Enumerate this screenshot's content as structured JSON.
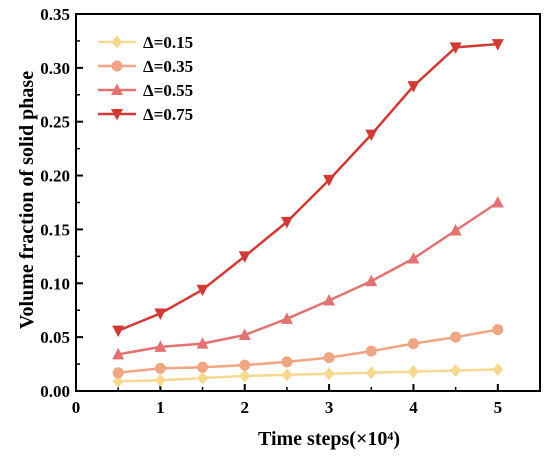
{
  "chart_data": {
    "type": "line",
    "title": "",
    "xlabel": "Time steps(×10⁴)",
    "ylabel": "Volume fraction of solid phase",
    "xlim": [
      0,
      5.5
    ],
    "ylim": [
      0,
      0.35
    ],
    "xticks": [
      0,
      1,
      2,
      3,
      4,
      5
    ],
    "xtick_labels": [
      "0",
      "1",
      "2",
      "3",
      "4",
      "5"
    ],
    "yticks": [
      0.0,
      0.05,
      0.1,
      0.15,
      0.2,
      0.25,
      0.3,
      0.35
    ],
    "ytick_labels": [
      "0.00",
      "0.05",
      "0.10",
      "0.15",
      "0.20",
      "0.25",
      "0.30",
      "0.35"
    ],
    "grid": false,
    "legend_position": "top-left",
    "x": [
      0.5,
      1.0,
      1.5,
      2.0,
      2.5,
      3.0,
      3.5,
      4.0,
      4.5,
      5.0
    ],
    "series": [
      {
        "name": "Δ=0.15",
        "color": "#F6D98F",
        "marker": "diamond",
        "values": [
          0.009,
          0.01,
          0.012,
          0.014,
          0.015,
          0.016,
          0.017,
          0.018,
          0.019,
          0.02
        ]
      },
      {
        "name": "Δ=0.35",
        "color": "#F0A583",
        "marker": "circle",
        "values": [
          0.017,
          0.021,
          0.022,
          0.024,
          0.027,
          0.031,
          0.037,
          0.044,
          0.05,
          0.057
        ]
      },
      {
        "name": "Δ=0.55",
        "color": "#E27372",
        "marker": "triangle-up",
        "values": [
          0.034,
          0.041,
          0.044,
          0.052,
          0.067,
          0.084,
          0.102,
          0.123,
          0.149,
          0.175
        ]
      },
      {
        "name": "Δ=0.75",
        "color": "#D23A35",
        "marker": "triangle-down",
        "values": [
          0.056,
          0.072,
          0.094,
          0.125,
          0.157,
          0.196,
          0.238,
          0.283,
          0.319,
          0.322
        ]
      }
    ]
  }
}
